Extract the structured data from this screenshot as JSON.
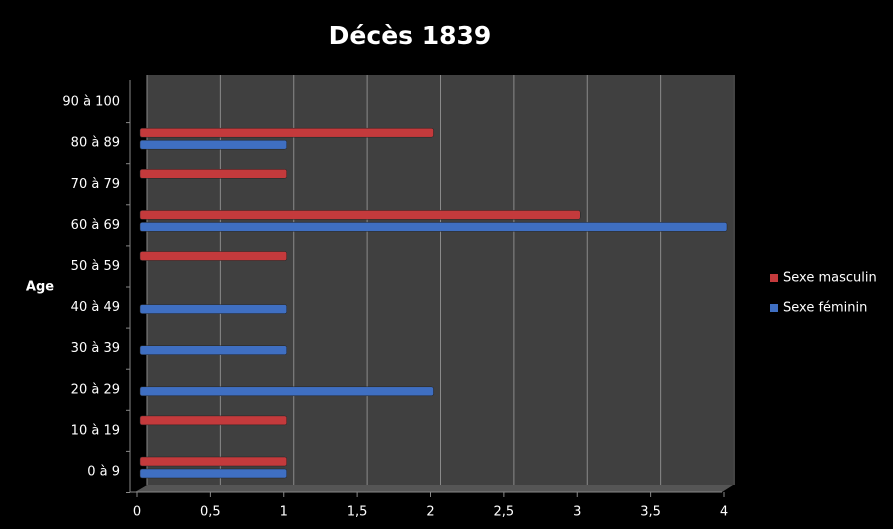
{
  "chart_data": {
    "type": "bar",
    "orientation": "horizontal",
    "title": "Décès 1839",
    "y_label": "Age",
    "categories": [
      "0 à 9",
      "10 à 19",
      "20 à 29",
      "30 à 39",
      "40 à 49",
      "50 à 59",
      "60 à 69",
      "70 à 79",
      "80 à 89",
      "90 à 100"
    ],
    "series": [
      {
        "name": "Sexe masculin",
        "color": "#c43a3c",
        "values": [
          1,
          1,
          0,
          0,
          0,
          1,
          3,
          1,
          2,
          0
        ]
      },
      {
        "name": "Sexe féminin",
        "color": "#3f6fc2",
        "values": [
          1,
          0,
          2,
          1,
          1,
          0,
          4,
          0,
          1,
          0
        ]
      }
    ],
    "xlim": [
      0,
      4
    ],
    "xticks": [
      0,
      {
        "value": 0.5,
        "label": "0,5"
      },
      1,
      {
        "value": 1.5,
        "label": "1,5"
      },
      2,
      {
        "value": 2.5,
        "label": "2,5"
      },
      3,
      {
        "value": 3.5,
        "label": "3,5"
      },
      4
    ],
    "grid": true,
    "legend": "right"
  }
}
